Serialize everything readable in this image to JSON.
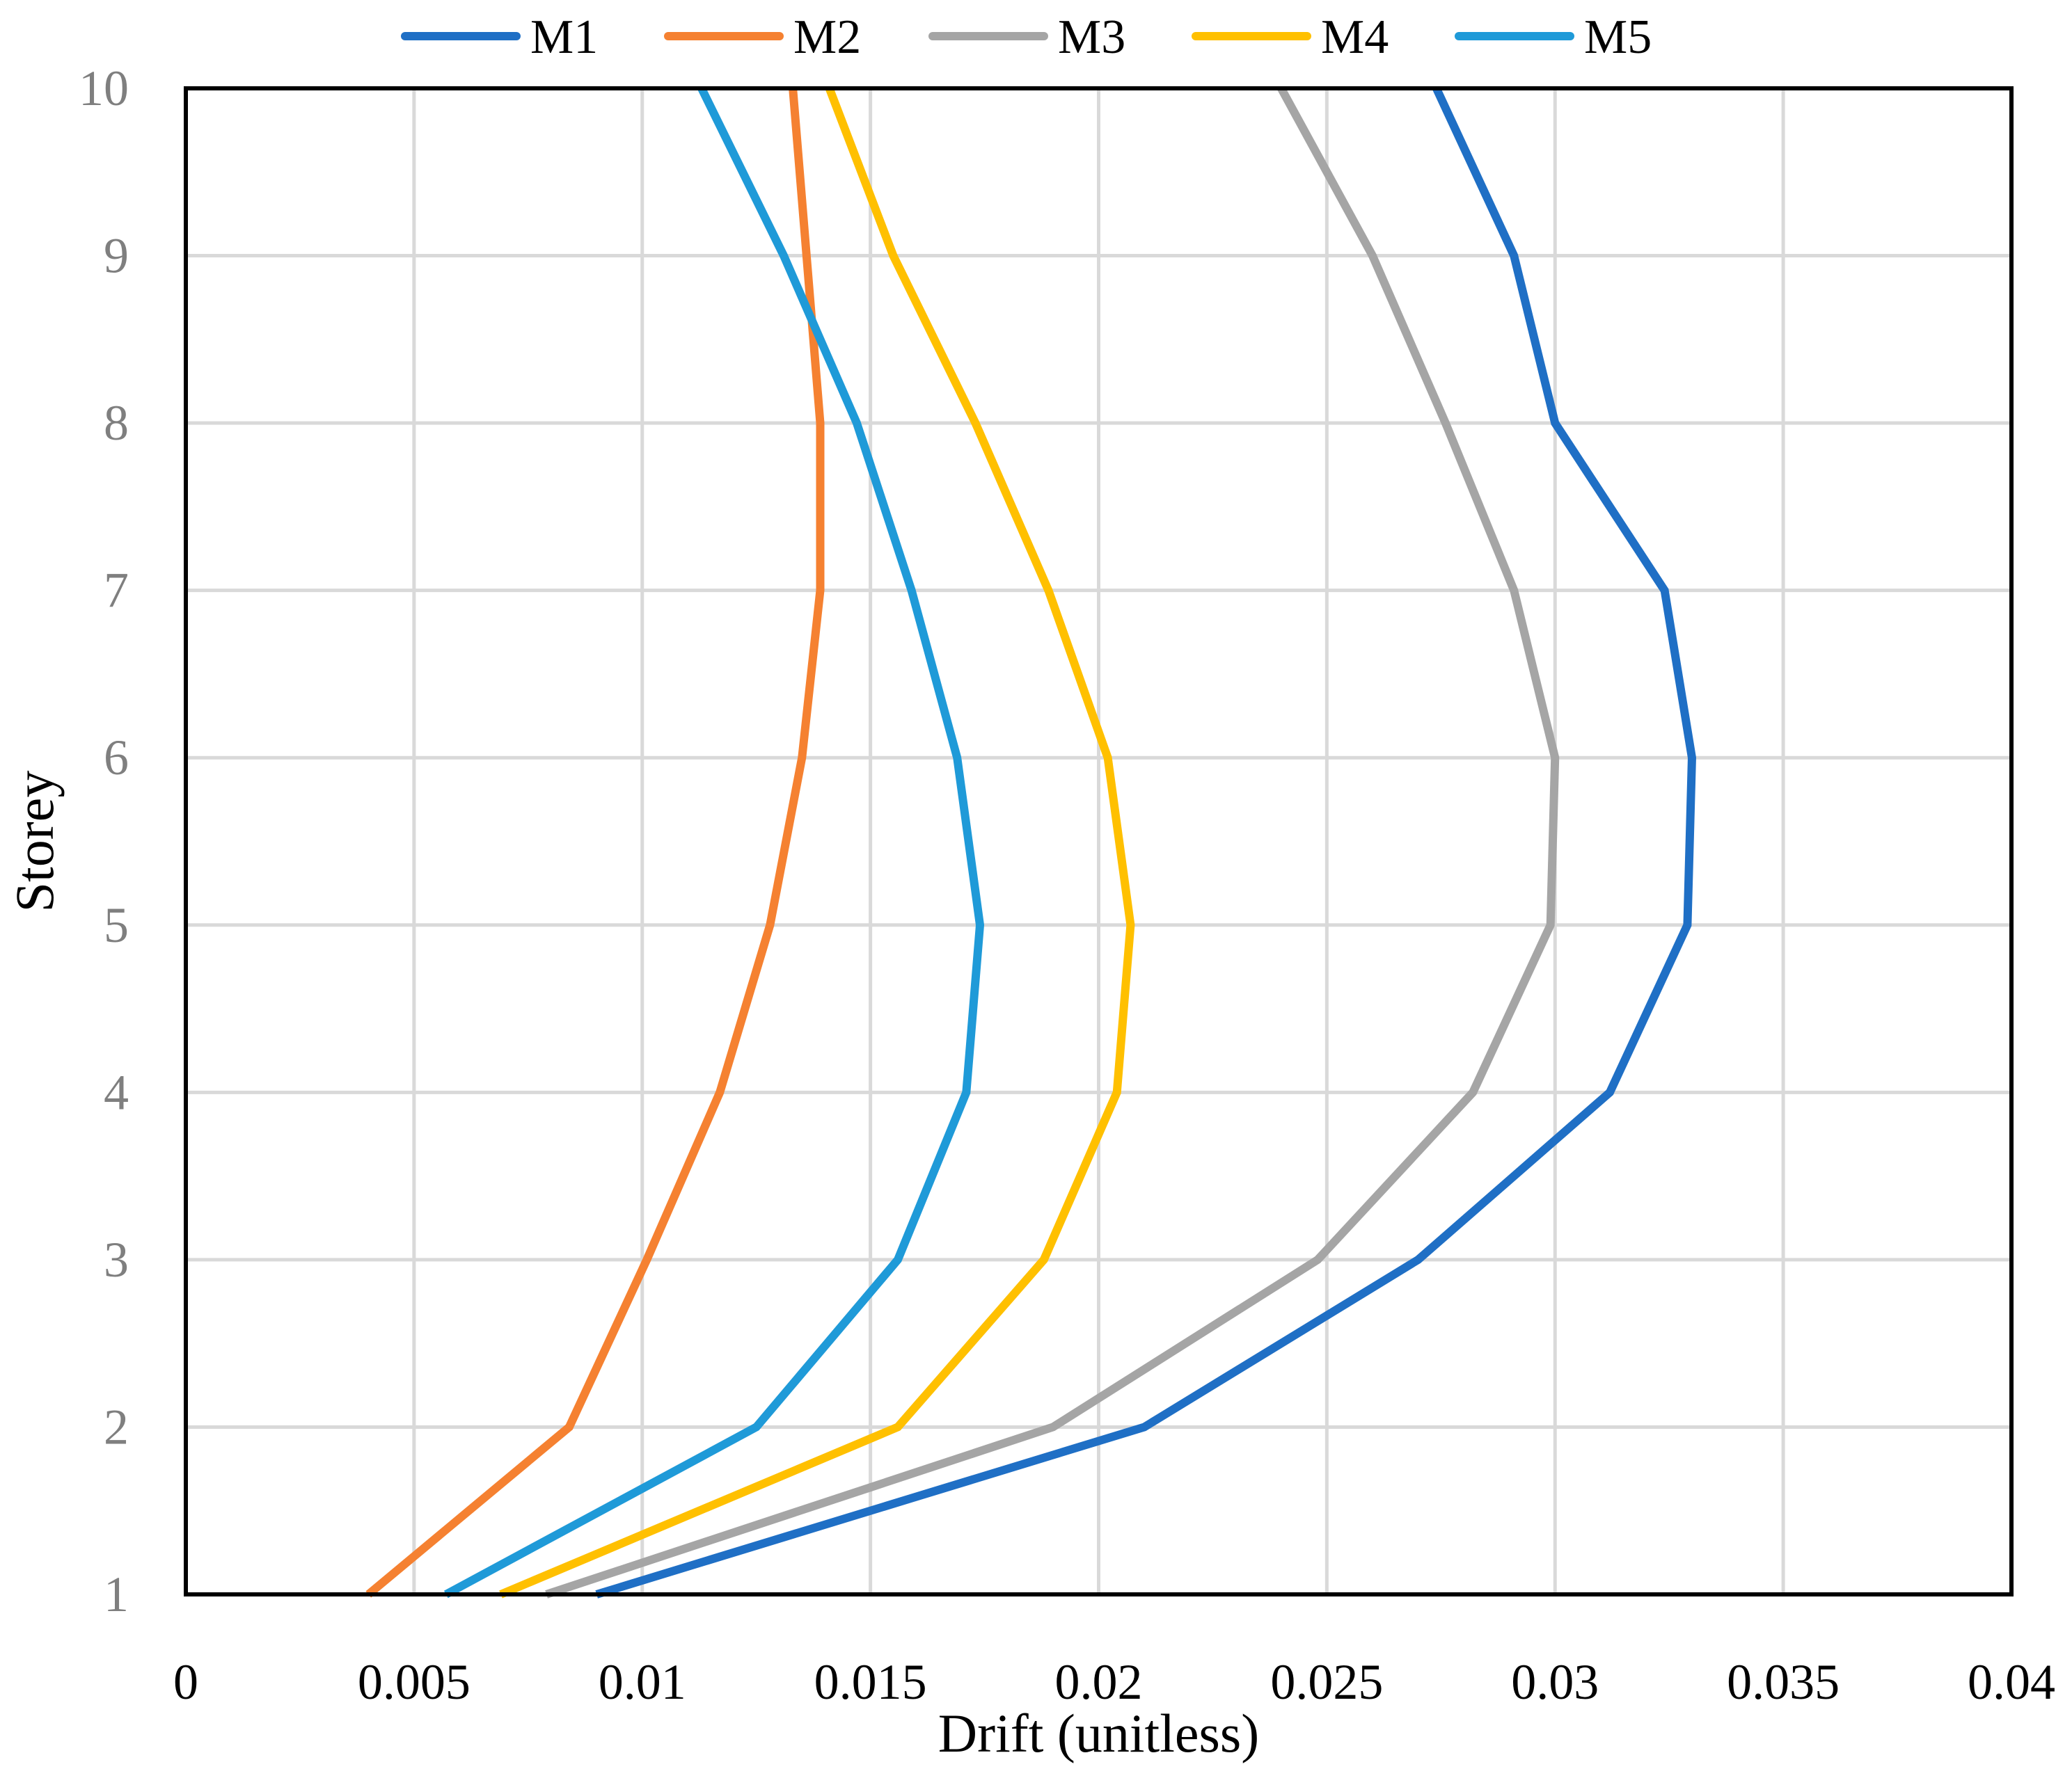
{
  "chart_data": {
    "type": "line",
    "orientation": "vertical-profile",
    "title": "",
    "xlabel": "Drift (unitless)",
    "ylabel": "Storey",
    "xlim": [
      0,
      0.04
    ],
    "ylim": [
      1,
      10
    ],
    "x_ticks": [
      "0",
      "0.005",
      "0.01",
      "0.015",
      "0.02",
      "0.025",
      "0.03",
      "0.035",
      "0.04"
    ],
    "y_ticks": [
      "1",
      "2",
      "3",
      "4",
      "5",
      "6",
      "7",
      "8",
      "9",
      "10"
    ],
    "grid": true,
    "legend_position": "top",
    "storeys": [
      1,
      2,
      3,
      4,
      5,
      6,
      7,
      8,
      9,
      10
    ],
    "series": [
      {
        "name": "M1",
        "color": "#1f6fc5",
        "values": [
          0.009,
          0.021,
          0.027,
          0.0312,
          0.0329,
          0.033,
          0.0324,
          0.03,
          0.0291,
          0.0274
        ]
      },
      {
        "name": "M2",
        "color": "#f58131",
        "values": [
          0.004,
          0.0084,
          0.0101,
          0.0117,
          0.0128,
          0.0135,
          0.0139,
          0.0139,
          0.0136,
          0.0133
        ]
      },
      {
        "name": "M3",
        "color": "#a5a5a5",
        "values": [
          0.0079,
          0.019,
          0.0248,
          0.0282,
          0.0299,
          0.03,
          0.0291,
          0.0276,
          0.026,
          0.024
        ]
      },
      {
        "name": "M4",
        "color": "#ffc000",
        "values": [
          0.0069,
          0.0156,
          0.0188,
          0.0204,
          0.0207,
          0.0202,
          0.0189,
          0.0173,
          0.0155,
          0.0141
        ]
      },
      {
        "name": "M5",
        "color": "#1f9ad8",
        "values": [
          0.0057,
          0.0125,
          0.0156,
          0.0171,
          0.0174,
          0.0169,
          0.0159,
          0.0147,
          0.0131,
          0.0113
        ]
      }
    ]
  }
}
